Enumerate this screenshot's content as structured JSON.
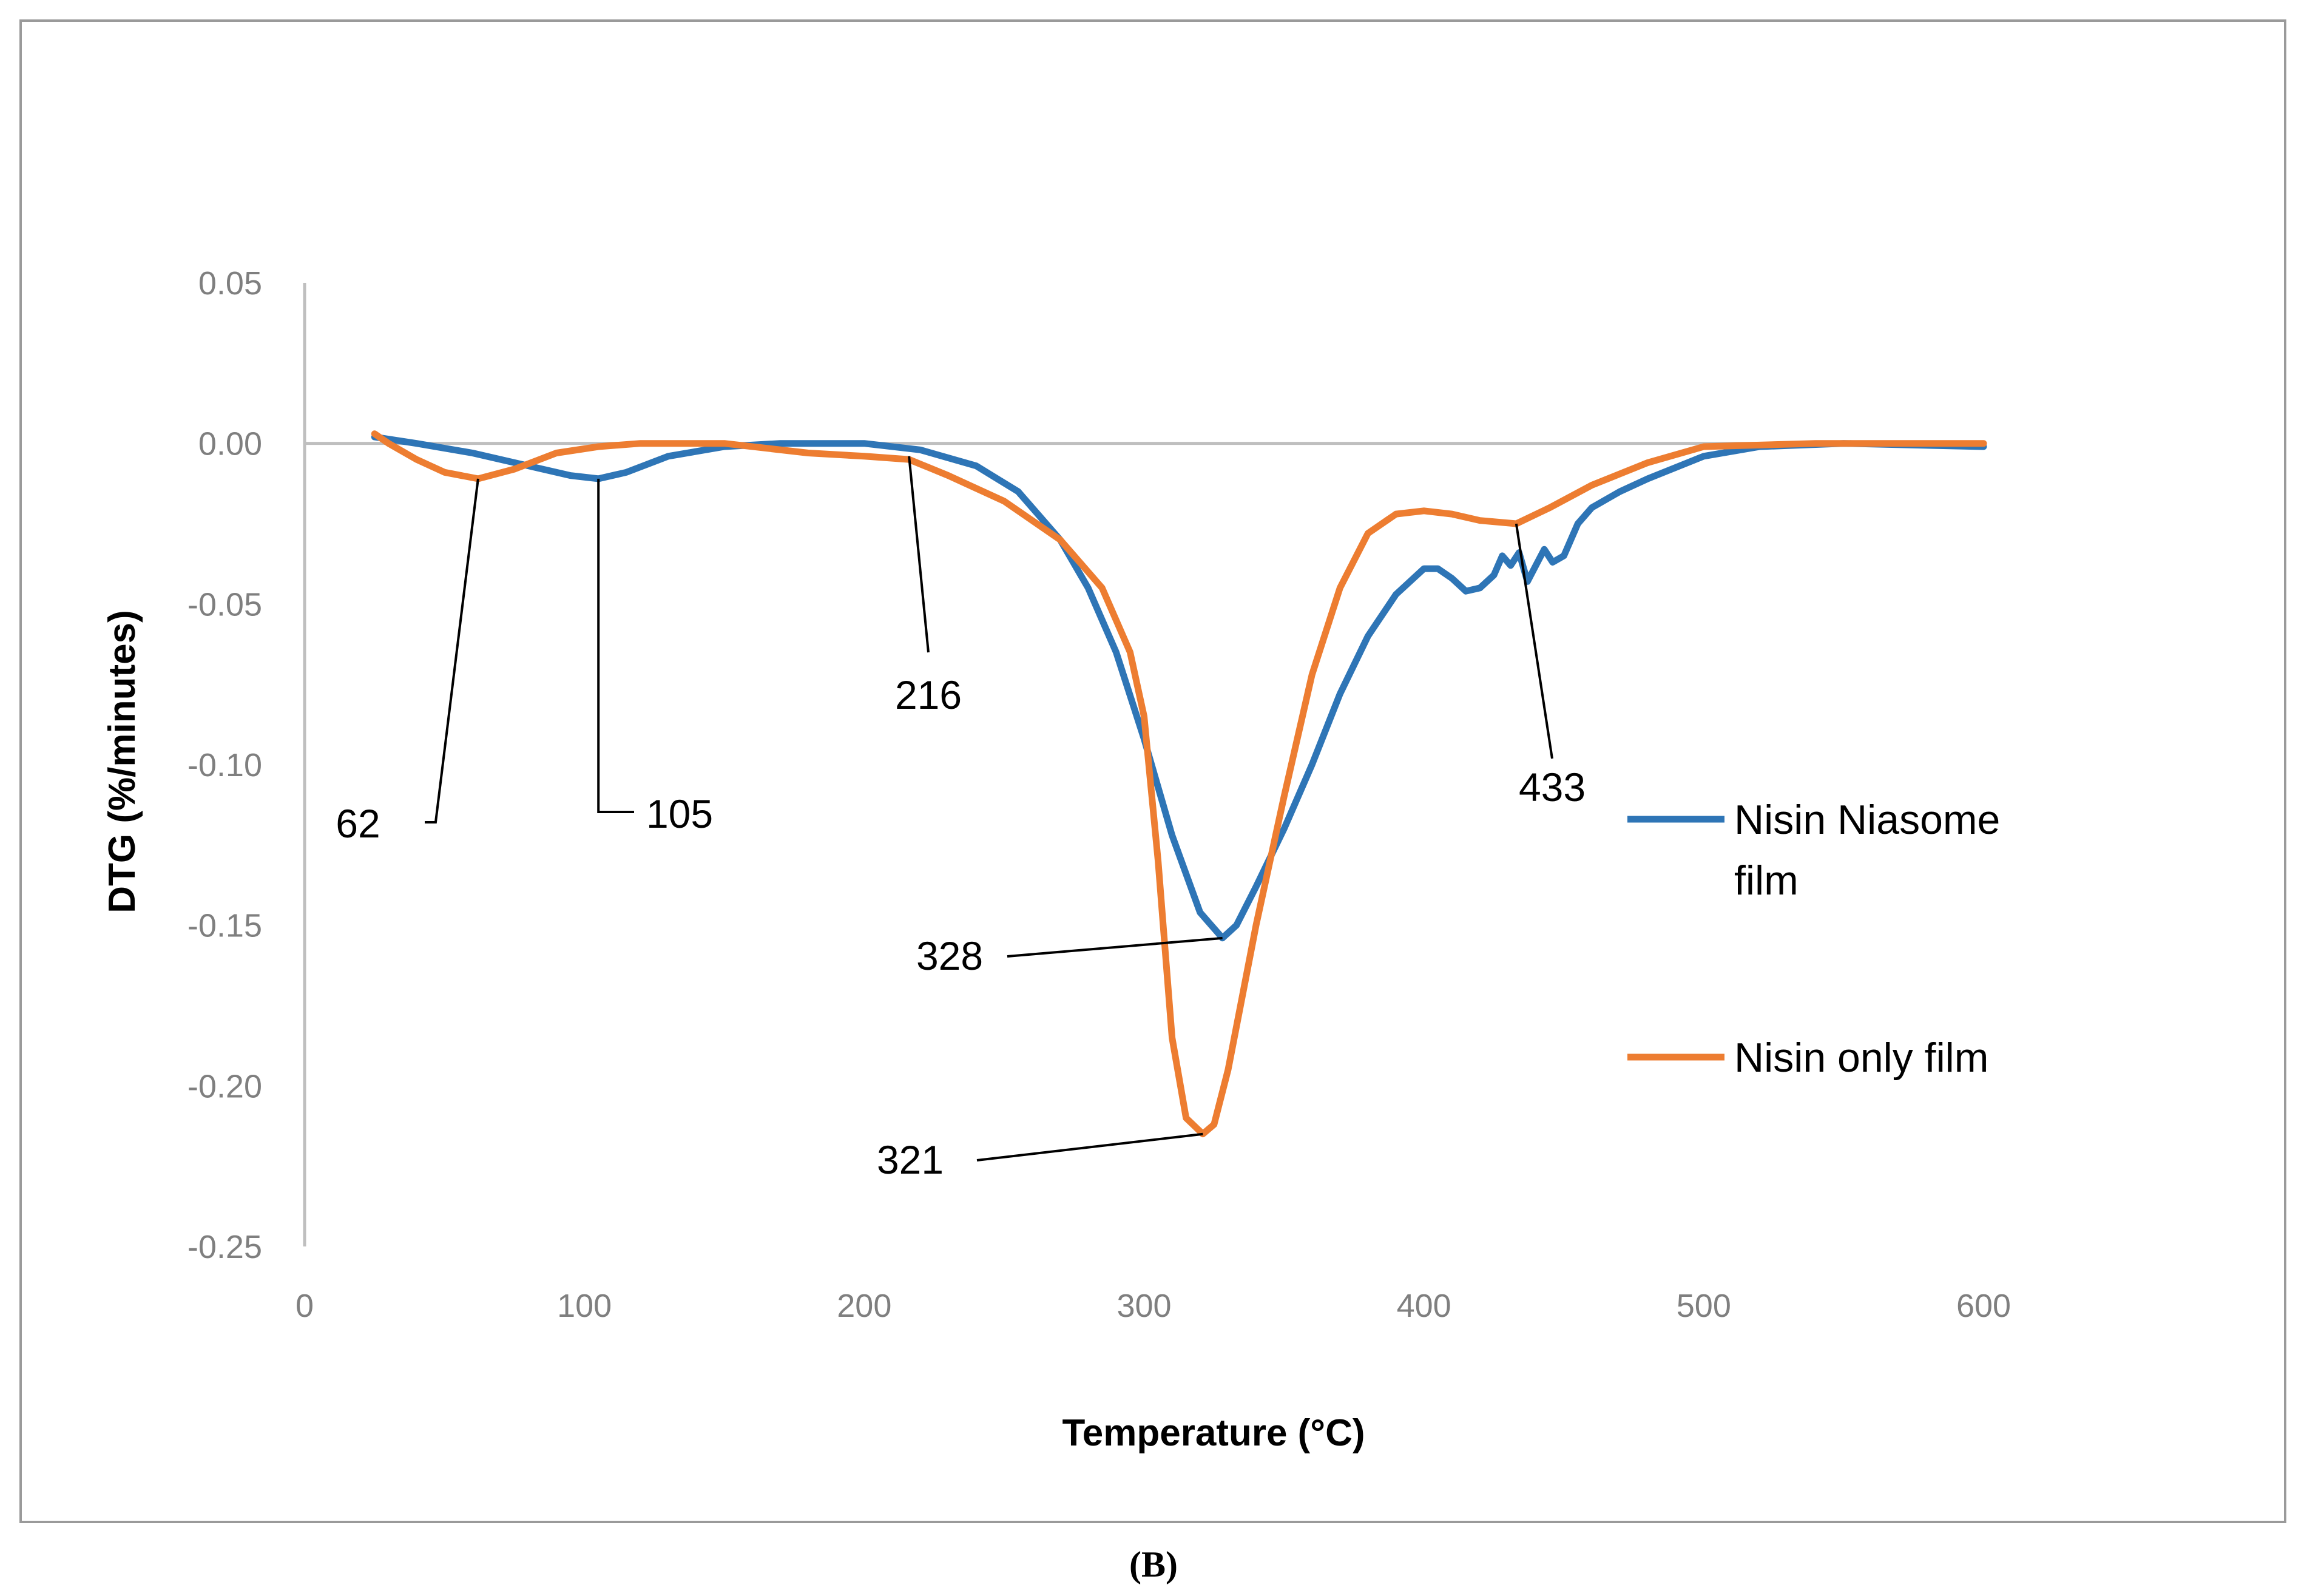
{
  "chart_data": {
    "type": "line",
    "title": "",
    "xlabel": "Temperature (°C)",
    "ylabel": "DTG (%/minutes)",
    "xlim": [
      0,
      600
    ],
    "ylim": [
      -0.25,
      0.05
    ],
    "x_ticks": [
      "0",
      "100",
      "200",
      "300",
      "400",
      "500",
      "600"
    ],
    "y_ticks": [
      "0.05",
      "0.00",
      "-0.05",
      "-0.10",
      "-0.15",
      "-0.20",
      "-0.25"
    ],
    "legend_position": "right",
    "series": [
      {
        "name": "Nisin Niasome film",
        "color": "#2e75b6",
        "x": [
          25,
          40,
          60,
          80,
          95,
          105,
          115,
          130,
          150,
          170,
          200,
          220,
          240,
          255,
          270,
          280,
          290,
          300,
          310,
          320,
          328,
          333,
          340,
          350,
          360,
          370,
          380,
          390,
          400,
          405,
          410,
          415,
          420,
          425,
          428,
          431,
          434,
          437,
          440,
          443,
          446,
          450,
          455,
          460,
          470,
          480,
          500,
          520,
          550,
          600
        ],
        "y": [
          0.002,
          0.0,
          -0.003,
          -0.007,
          -0.01,
          -0.011,
          -0.009,
          -0.004,
          -0.001,
          0.0,
          0.0,
          -0.002,
          -0.007,
          -0.015,
          -0.03,
          -0.045,
          -0.065,
          -0.092,
          -0.122,
          -0.146,
          -0.154,
          -0.15,
          -0.138,
          -0.12,
          -0.1,
          -0.078,
          -0.06,
          -0.047,
          -0.039,
          -0.039,
          -0.042,
          -0.046,
          -0.045,
          -0.041,
          -0.035,
          -0.038,
          -0.034,
          -0.043,
          -0.038,
          -0.033,
          -0.037,
          -0.035,
          -0.025,
          -0.02,
          -0.015,
          -0.011,
          -0.004,
          -0.001,
          0.0,
          -0.001
        ]
      },
      {
        "name": "Nisin only film",
        "color": "#ed7d31",
        "x": [
          25,
          30,
          40,
          50,
          62,
          75,
          90,
          105,
          120,
          150,
          180,
          200,
          216,
          230,
          250,
          270,
          285,
          295,
          300,
          305,
          310,
          315,
          321,
          325,
          330,
          340,
          350,
          360,
          370,
          380,
          390,
          400,
          410,
          420,
          433,
          445,
          460,
          480,
          500,
          540,
          600
        ],
        "y": [
          0.003,
          0.0,
          -0.005,
          -0.009,
          -0.011,
          -0.008,
          -0.003,
          -0.001,
          0.0,
          0.0,
          -0.003,
          -0.004,
          -0.005,
          -0.01,
          -0.018,
          -0.03,
          -0.045,
          -0.065,
          -0.085,
          -0.13,
          -0.185,
          -0.21,
          -0.215,
          -0.212,
          -0.195,
          -0.15,
          -0.11,
          -0.072,
          -0.045,
          -0.028,
          -0.022,
          -0.021,
          -0.022,
          -0.024,
          -0.025,
          -0.02,
          -0.013,
          -0.006,
          -0.001,
          0.0,
          0.0
        ]
      }
    ],
    "annotations": [
      {
        "text": "62",
        "x": 62,
        "y": -0.011
      },
      {
        "text": "105",
        "x": 105,
        "y": -0.011
      },
      {
        "text": "216",
        "x": 216,
        "y": -0.004
      },
      {
        "text": "328",
        "x": 328,
        "y": -0.154
      },
      {
        "text": "321",
        "x": 321,
        "y": -0.215
      },
      {
        "text": "433",
        "x": 433,
        "y": -0.025
      }
    ],
    "panel_label": "(B)"
  }
}
